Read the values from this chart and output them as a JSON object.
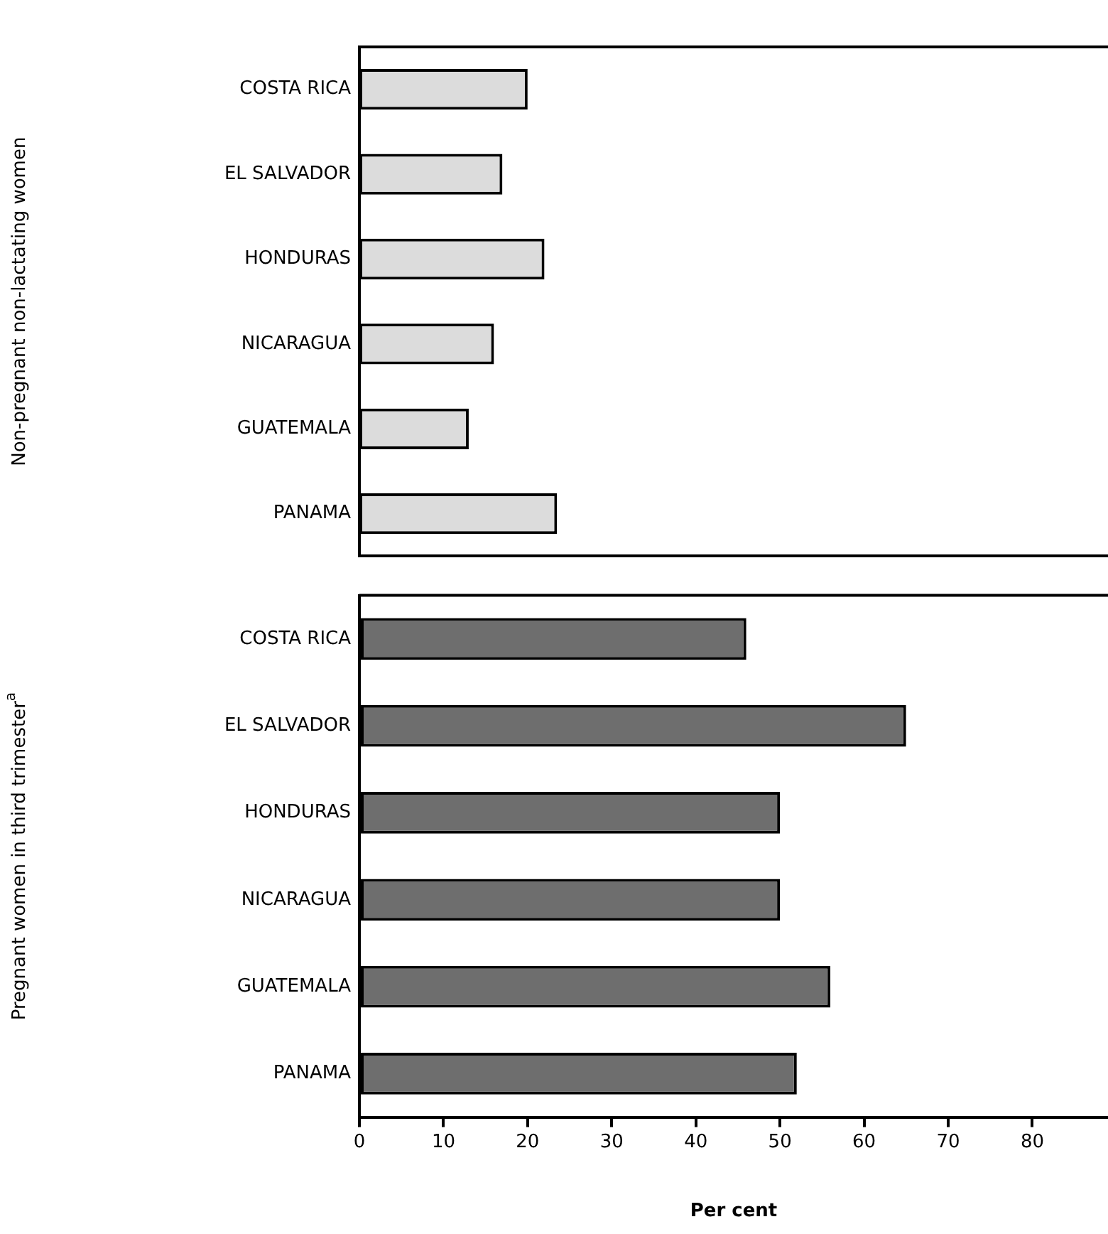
{
  "chart_data": [
    {
      "type": "bar",
      "orientation": "horizontal",
      "ylabel": "Non-pregnant non-lactating women",
      "categories": [
        "COSTA RICA",
        "EL SALVADOR",
        "HONDURAS",
        "NICARAGUA",
        "GUATEMALA",
        "PANAMA"
      ],
      "values": [
        20,
        17,
        22,
        16,
        13,
        23.5
      ],
      "color": "#dcdcdc",
      "xlim": [
        0,
        89
      ],
      "tick_labels": "y"
    },
    {
      "type": "bar",
      "orientation": "horizontal",
      "ylabel": "Pregnant women in third trimester$^{a}$",
      "xlabel": "Per cent",
      "categories": [
        "COSTA RICA",
        "EL SALVADOR",
        "HONDURAS",
        "NICARAGUA",
        "GUATEMALA",
        "PANAMA"
      ],
      "values": [
        46,
        65,
        50,
        50,
        56,
        52
      ],
      "color": "#6e6e6e",
      "xlim": [
        0,
        89
      ],
      "xticks": [
        0,
        10,
        20,
        30,
        40,
        50,
        60,
        70,
        80
      ]
    }
  ]
}
